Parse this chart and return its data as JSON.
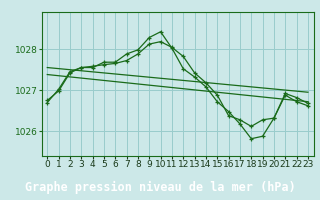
{
  "background_color": "#cce8e8",
  "plot_bg_color": "#cce8e8",
  "grid_color": "#99cccc",
  "line_color": "#1a6b1a",
  "title": "Graphe pression niveau de la mer (hPa)",
  "title_bg": "#2a5a2a",
  "title_fg": "#ffffff",
  "xlim": [
    -0.5,
    23.5
  ],
  "ylim": [
    1025.4,
    1028.9
  ],
  "yticks": [
    1026,
    1027,
    1028
  ],
  "xticks": [
    0,
    1,
    2,
    3,
    4,
    5,
    6,
    7,
    8,
    9,
    10,
    11,
    12,
    13,
    14,
    15,
    16,
    17,
    18,
    19,
    20,
    21,
    22,
    23
  ],
  "series": [
    {
      "x": [
        0,
        1,
        2,
        3,
        4,
        5,
        6,
        7,
        8,
        9,
        10,
        11,
        12,
        13,
        14,
        15,
        16,
        17,
        18,
        19,
        20,
        21,
        22,
        23
      ],
      "y": [
        1026.75,
        1026.98,
        1027.42,
        1027.55,
        1027.58,
        1027.62,
        1027.65,
        1027.72,
        1027.88,
        1028.12,
        1028.18,
        1028.04,
        1027.82,
        1027.42,
        1027.18,
        1026.88,
        1026.38,
        1026.28,
        1026.12,
        1026.28,
        1026.32,
        1026.88,
        1026.72,
        1026.62
      ],
      "has_markers": true
    },
    {
      "x": [
        0,
        1,
        2,
        3,
        4,
        5,
        6,
        7,
        8,
        9,
        10,
        11,
        12,
        13,
        14,
        15,
        16,
        17,
        18,
        19,
        20,
        21,
        22,
        23
      ],
      "y": [
        1026.7,
        1027.02,
        1027.45,
        1027.55,
        1027.55,
        1027.68,
        1027.68,
        1027.88,
        1027.98,
        1028.28,
        1028.42,
        1028.02,
        1027.52,
        1027.32,
        1027.08,
        1026.72,
        1026.48,
        1026.18,
        1025.82,
        1025.88,
        1026.32,
        1026.92,
        1026.82,
        1026.68
      ],
      "has_markers": true
    },
    {
      "x": [
        0,
        23
      ],
      "y": [
        1027.55,
        1026.95
      ],
      "has_markers": false
    },
    {
      "x": [
        0,
        23
      ],
      "y": [
        1027.38,
        1026.72
      ],
      "has_markers": false
    }
  ],
  "title_fontsize": 8.5,
  "tick_fontsize": 6.5,
  "ytick_color": "#1a6b1a",
  "xtick_color": "#1a3a1a",
  "spine_color": "#1a6b1a"
}
